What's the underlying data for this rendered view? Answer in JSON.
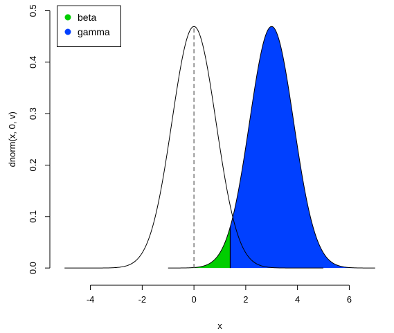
{
  "chart_data": {
    "type": "area",
    "xlabel": "x",
    "ylabel": "dnorm(x, 0, v)",
    "xlim": [
      -5.3,
      7.3
    ],
    "ylim": [
      -0.02,
      0.51
    ],
    "x_ticks": [
      -4,
      -2,
      0,
      2,
      4,
      6
    ],
    "y_ticks": [
      0.0,
      0.1,
      0.2,
      0.3,
      0.4,
      0.5
    ],
    "x_tick_labels": [
      "-4",
      "-2",
      "0",
      "2",
      "4",
      "6"
    ],
    "y_tick_labels": [
      "0.0",
      "0.1",
      "0.2",
      "0.3",
      "0.4",
      "0.5"
    ],
    "grid": false,
    "legend_position": "top-left",
    "series": [
      {
        "name": "beta",
        "type": "area",
        "color": "#00cd00",
        "mean": 3,
        "sd": 0.85,
        "x_from": -1,
        "x_to": 1.4
      },
      {
        "name": "gamma",
        "type": "area",
        "color": "#0040ff",
        "mean": 3,
        "sd": 0.85,
        "x_from": 1.4,
        "x_to": 7
      },
      {
        "type": "line",
        "color": "#000000",
        "mean": 0,
        "sd": 0.85,
        "x_from": -5,
        "x_to": 5
      },
      {
        "type": "line",
        "color": "#000000",
        "mean": 3,
        "sd": 0.85,
        "x_from": -1,
        "x_to": 7
      }
    ],
    "annotations": [
      {
        "type": "vline",
        "style": "dashed",
        "color": "#666666",
        "x": 0
      },
      {
        "type": "vline",
        "style": "solid",
        "color": "#000000",
        "x": 1.4
      }
    ]
  }
}
